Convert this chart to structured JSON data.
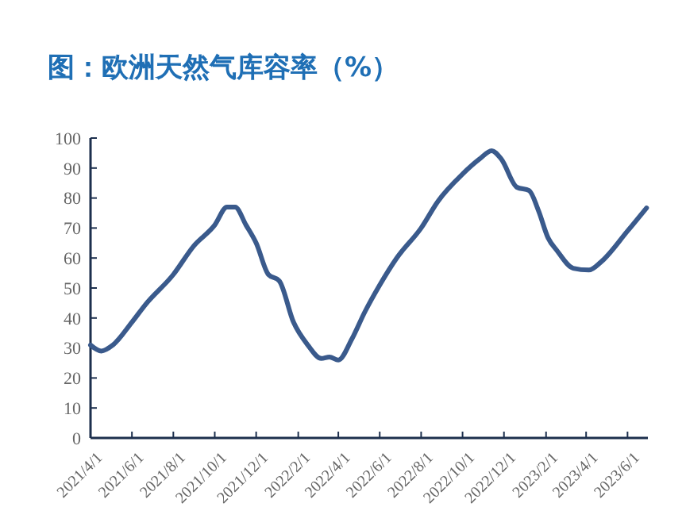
{
  "chart_data": {
    "type": "line",
    "title": "图：欧洲天然气库容率（%）",
    "x": [
      "2021-04-01",
      "2021-04-17",
      "2021-05-04",
      "2021-06-01",
      "2021-06-21",
      "2021-08-01",
      "2021-08-31",
      "2021-10-01",
      "2021-10-19",
      "2021-10-31",
      "2021-11-16",
      "2021-12-01",
      "2021-12-19",
      "2022-01-04",
      "2022-01-25",
      "2022-02-15",
      "2022-03-07",
      "2022-03-19",
      "2022-04-01",
      "2022-04-21",
      "2022-05-10",
      "2022-06-01",
      "2022-06-26",
      "2022-08-01",
      "2022-08-26",
      "2022-10-01",
      "2022-10-26",
      "2022-11-13",
      "2022-11-27",
      "2022-12-20",
      "2023-01-07",
      "2023-01-21",
      "2023-02-04",
      "2023-02-17",
      "2023-03-13",
      "2023-04-05",
      "2023-04-23",
      "2023-06-01",
      "2023-06-29"
    ],
    "series": [
      {
        "color": "#3a5a8c",
        "values": [
          31,
          29,
          31,
          38.6,
          44.5,
          54.5,
          64,
          71,
          77,
          77,
          71,
          65,
          54.5,
          52.4,
          38.6,
          31,
          26.5,
          27,
          26,
          33,
          42,
          51,
          60,
          70,
          79,
          88,
          93,
          95.8,
          93,
          83.6,
          82.5,
          75.7,
          66.7,
          62.5,
          56.6,
          56,
          58.7,
          69,
          76.7
        ]
      }
    ],
    "xlim": [
      "2021-04-01",
      "2023-07-01"
    ],
    "xticks": [
      {
        "value": "2021-04-01",
        "label": "2021/4/1"
      },
      {
        "value": "2021-06-01",
        "label": "2021/6/1"
      },
      {
        "value": "2021-08-01",
        "label": "2021/8/1"
      },
      {
        "value": "2021-10-01",
        "label": "2021/10/1"
      },
      {
        "value": "2021-12-01",
        "label": "2021/12/1"
      },
      {
        "value": "2022-02-01",
        "label": "2022/2/1"
      },
      {
        "value": "2022-04-01",
        "label": "2022/4/1"
      },
      {
        "value": "2022-06-01",
        "label": "2022/6/1"
      },
      {
        "value": "2022-08-01",
        "label": "2022/8/1"
      },
      {
        "value": "2022-10-01",
        "label": "2022/10/1"
      },
      {
        "value": "2022-12-01",
        "label": "2022/12/1"
      },
      {
        "value": "2023-02-01",
        "label": "2023/2/1"
      },
      {
        "value": "2023-04-01",
        "label": "2023/4/1"
      },
      {
        "value": "2023-06-01",
        "label": "2023/6/1"
      }
    ],
    "ylim": [
      0,
      100
    ],
    "yticks": [
      0,
      10,
      20,
      30,
      40,
      50,
      60,
      70,
      80,
      90,
      100
    ]
  }
}
